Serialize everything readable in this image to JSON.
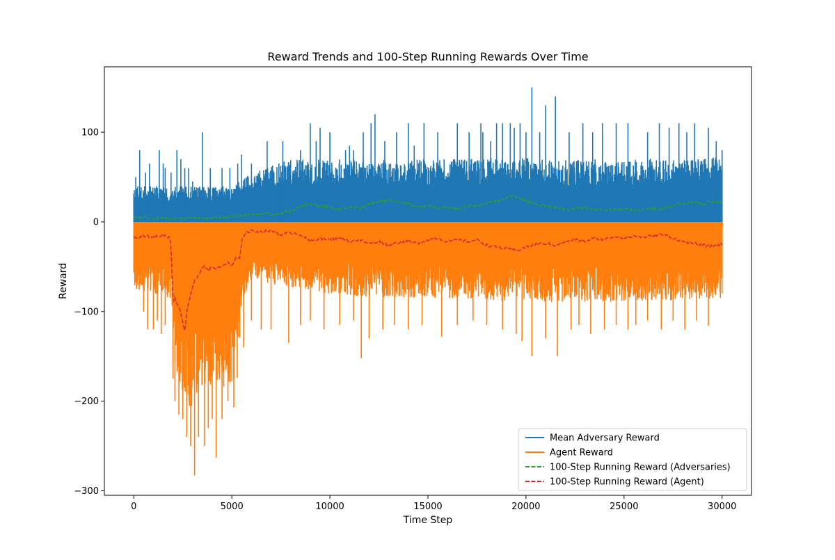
{
  "chart_data": {
    "type": "line",
    "title": "Reward Trends and 100-Step Running Rewards Over Time",
    "xlabel": "Time Step",
    "ylabel": "Reward",
    "xlim": [
      -1500,
      31500
    ],
    "ylim": [
      -305,
      173
    ],
    "xticks": [
      0,
      5000,
      10000,
      15000,
      20000,
      25000,
      30000
    ],
    "xtick_labels": [
      "0",
      "5000",
      "10000",
      "15000",
      "20000",
      "25000",
      "30000"
    ],
    "yticks": [
      100,
      0,
      -100,
      -200,
      -300
    ],
    "ytick_labels": [
      "100",
      "0",
      "−100",
      "−200",
      "−300"
    ],
    "grid": false,
    "legend": {
      "position": "lower-right"
    },
    "series": [
      {
        "name": "Mean Adversary Reward",
        "color": "#1f77b4",
        "style": "solid",
        "kind": "spike-upper",
        "band_top": [
          [
            0,
            40
          ],
          [
            2000,
            40
          ],
          [
            3000,
            40
          ],
          [
            5000,
            40
          ],
          [
            6000,
            55
          ],
          [
            8000,
            70
          ],
          [
            9000,
            70
          ],
          [
            12000,
            70
          ],
          [
            15000,
            70
          ],
          [
            19000,
            72
          ],
          [
            21000,
            70
          ],
          [
            25000,
            70
          ],
          [
            30000,
            72
          ]
        ],
        "spikes": [
          [
            100,
            50
          ],
          [
            300,
            80
          ],
          [
            600,
            55
          ],
          [
            800,
            65
          ],
          [
            1300,
            80
          ],
          [
            1500,
            65
          ],
          [
            1600,
            60
          ],
          [
            1900,
            55
          ],
          [
            2200,
            80
          ],
          [
            2400,
            70
          ],
          [
            2600,
            60
          ],
          [
            2800,
            60
          ],
          [
            3000,
            45
          ],
          [
            3500,
            100
          ],
          [
            3900,
            60
          ],
          [
            4500,
            60
          ],
          [
            4900,
            60
          ],
          [
            5300,
            65
          ],
          [
            5500,
            75
          ],
          [
            6000,
            65
          ],
          [
            6800,
            90
          ],
          [
            7400,
            65
          ],
          [
            7600,
            90
          ],
          [
            8500,
            80
          ],
          [
            9000,
            110
          ],
          [
            9300,
            90
          ],
          [
            9500,
            105
          ],
          [
            10000,
            100
          ],
          [
            10800,
            80
          ],
          [
            11000,
            85
          ],
          [
            11200,
            80
          ],
          [
            11700,
            100
          ],
          [
            12100,
            110
          ],
          [
            12300,
            120
          ],
          [
            12800,
            90
          ],
          [
            13400,
            100
          ],
          [
            14000,
            110
          ],
          [
            14300,
            85
          ],
          [
            14800,
            110
          ],
          [
            15500,
            100
          ],
          [
            16500,
            110
          ],
          [
            17100,
            100
          ],
          [
            17700,
            110
          ],
          [
            17800,
            100
          ],
          [
            18200,
            90
          ],
          [
            18500,
            110
          ],
          [
            18800,
            110
          ],
          [
            19200,
            110
          ],
          [
            19400,
            105
          ],
          [
            19700,
            110
          ],
          [
            20000,
            100
          ],
          [
            20300,
            150
          ],
          [
            20700,
            100
          ],
          [
            21000,
            130
          ],
          [
            21500,
            140
          ],
          [
            22200,
            100
          ],
          [
            22900,
            110
          ],
          [
            23400,
            100
          ],
          [
            23900,
            110
          ],
          [
            24600,
            110
          ],
          [
            25200,
            110
          ],
          [
            26200,
            100
          ],
          [
            26800,
            110
          ],
          [
            27300,
            105
          ],
          [
            27800,
            110
          ],
          [
            28200,
            100
          ],
          [
            28600,
            110
          ],
          [
            29300,
            105
          ],
          [
            29700,
            90
          ],
          [
            30000,
            80
          ]
        ]
      },
      {
        "name": "Agent Reward",
        "color": "#ff7f0e",
        "style": "solid",
        "kind": "spike-lower",
        "band_bottom": [
          [
            0,
            -75
          ],
          [
            1000,
            -80
          ],
          [
            1900,
            -85
          ],
          [
            2000,
            -150
          ],
          [
            2500,
            -200
          ],
          [
            3000,
            -210
          ],
          [
            3500,
            -190
          ],
          [
            4000,
            -180
          ],
          [
            4500,
            -185
          ],
          [
            5000,
            -180
          ],
          [
            5300,
            -175
          ],
          [
            5500,
            -90
          ],
          [
            6000,
            -65
          ],
          [
            8000,
            -75
          ],
          [
            10000,
            -80
          ],
          [
            12000,
            -85
          ],
          [
            15000,
            -85
          ],
          [
            20000,
            -90
          ],
          [
            25000,
            -90
          ],
          [
            30000,
            -85
          ]
        ],
        "spikes": [
          [
            100,
            -68
          ],
          [
            500,
            -100
          ],
          [
            700,
            -120
          ],
          [
            1000,
            -120
          ],
          [
            1200,
            -110
          ],
          [
            1400,
            -125
          ],
          [
            1600,
            -115
          ],
          [
            2000,
            -175
          ],
          [
            2100,
            -200
          ],
          [
            2300,
            -215
          ],
          [
            2500,
            -220
          ],
          [
            2700,
            -240
          ],
          [
            2900,
            -250
          ],
          [
            3100,
            -283
          ],
          [
            3300,
            -240
          ],
          [
            3600,
            -250
          ],
          [
            3800,
            -230
          ],
          [
            4000,
            -220
          ],
          [
            4200,
            -263
          ],
          [
            4500,
            -220
          ],
          [
            4800,
            -200
          ],
          [
            5100,
            -207
          ],
          [
            5600,
            -140
          ],
          [
            6000,
            -110
          ],
          [
            6500,
            -120
          ],
          [
            7000,
            -120
          ],
          [
            7900,
            -135
          ],
          [
            8500,
            -115
          ],
          [
            9000,
            -110
          ],
          [
            9700,
            -120
          ],
          [
            10500,
            -115
          ],
          [
            11200,
            -110
          ],
          [
            11600,
            -152
          ],
          [
            12000,
            -130
          ],
          [
            12700,
            -120
          ],
          [
            13300,
            -115
          ],
          [
            14000,
            -120
          ],
          [
            14700,
            -115
          ],
          [
            15700,
            -128
          ],
          [
            16500,
            -115
          ],
          [
            17300,
            -110
          ],
          [
            18000,
            -115
          ],
          [
            18800,
            -120
          ],
          [
            19500,
            -125
          ],
          [
            19800,
            -133
          ],
          [
            20300,
            -150
          ],
          [
            21000,
            -130
          ],
          [
            21600,
            -150
          ],
          [
            22300,
            -120
          ],
          [
            22700,
            -115
          ],
          [
            23300,
            -125
          ],
          [
            24000,
            -120
          ],
          [
            24600,
            -115
          ],
          [
            25200,
            -120
          ],
          [
            25600,
            -115
          ],
          [
            26200,
            -110
          ],
          [
            26900,
            -120
          ],
          [
            27500,
            -110
          ],
          [
            28100,
            -120
          ],
          [
            28700,
            -110
          ],
          [
            29300,
            -116
          ],
          [
            30000,
            -80
          ]
        ]
      },
      {
        "name": "100-Step Running Reward (Adversaries)",
        "color": "#2ca02c",
        "style": "dashed",
        "kind": "line",
        "points": [
          [
            0,
            4
          ],
          [
            500,
            5
          ],
          [
            1000,
            4
          ],
          [
            1500,
            5
          ],
          [
            2000,
            3
          ],
          [
            2500,
            4
          ],
          [
            3000,
            5
          ],
          [
            3500,
            5
          ],
          [
            4000,
            4
          ],
          [
            4500,
            5
          ],
          [
            5000,
            6
          ],
          [
            5500,
            7
          ],
          [
            6000,
            8
          ],
          [
            6500,
            9
          ],
          [
            7000,
            8
          ],
          [
            7500,
            10
          ],
          [
            8000,
            12
          ],
          [
            8500,
            17
          ],
          [
            9000,
            20
          ],
          [
            9500,
            18
          ],
          [
            10000,
            16
          ],
          [
            10500,
            14
          ],
          [
            11000,
            17
          ],
          [
            11500,
            15
          ],
          [
            12000,
            20
          ],
          [
            12500,
            22
          ],
          [
            13000,
            24
          ],
          [
            13500,
            22
          ],
          [
            14000,
            20
          ],
          [
            14500,
            17
          ],
          [
            15000,
            18
          ],
          [
            15500,
            15
          ],
          [
            16000,
            16
          ],
          [
            16500,
            14
          ],
          [
            17000,
            17
          ],
          [
            17500,
            18
          ],
          [
            18000,
            20
          ],
          [
            18500,
            24
          ],
          [
            19000,
            26
          ],
          [
            19300,
            29
          ],
          [
            19600,
            27
          ],
          [
            20000,
            24
          ],
          [
            20500,
            20
          ],
          [
            21000,
            18
          ],
          [
            21500,
            16
          ],
          [
            22000,
            14
          ],
          [
            22500,
            15
          ],
          [
            23000,
            16
          ],
          [
            23500,
            14
          ],
          [
            24000,
            13
          ],
          [
            24500,
            14
          ],
          [
            25000,
            15
          ],
          [
            25500,
            13
          ],
          [
            26000,
            14
          ],
          [
            26500,
            15
          ],
          [
            27000,
            14
          ],
          [
            27500,
            18
          ],
          [
            28000,
            21
          ],
          [
            28500,
            22
          ],
          [
            29000,
            20
          ],
          [
            29500,
            23
          ],
          [
            30000,
            22
          ]
        ]
      },
      {
        "name": "100-Step Running Reward (Agent)",
        "color": "#d62728",
        "style": "dashed",
        "kind": "line",
        "points": [
          [
            0,
            -16
          ],
          [
            300,
            -17
          ],
          [
            600,
            -15
          ],
          [
            900,
            -18
          ],
          [
            1200,
            -16
          ],
          [
            1500,
            -15
          ],
          [
            1800,
            -17
          ],
          [
            1900,
            -25
          ],
          [
            2000,
            -90
          ],
          [
            2100,
            -85
          ],
          [
            2300,
            -95
          ],
          [
            2500,
            -110
          ],
          [
            2600,
            -125
          ],
          [
            2700,
            -100
          ],
          [
            2900,
            -80
          ],
          [
            3100,
            -65
          ],
          [
            3300,
            -60
          ],
          [
            3600,
            -48
          ],
          [
            3800,
            -55
          ],
          [
            4000,
            -50
          ],
          [
            4300,
            -52
          ],
          [
            4600,
            -48
          ],
          [
            4800,
            -45
          ],
          [
            5000,
            -50
          ],
          [
            5200,
            -40
          ],
          [
            5400,
            -42
          ],
          [
            5500,
            -20
          ],
          [
            5700,
            -12
          ],
          [
            6000,
            -10
          ],
          [
            6500,
            -11
          ],
          [
            7000,
            -10
          ],
          [
            7500,
            -14
          ],
          [
            8000,
            -12
          ],
          [
            8500,
            -14
          ],
          [
            9000,
            -22
          ],
          [
            9500,
            -18
          ],
          [
            10000,
            -20
          ],
          [
            10500,
            -17
          ],
          [
            11000,
            -22
          ],
          [
            11500,
            -20
          ],
          [
            12000,
            -24
          ],
          [
            12500,
            -22
          ],
          [
            13000,
            -26
          ],
          [
            13500,
            -23
          ],
          [
            14000,
            -22
          ],
          [
            14500,
            -24
          ],
          [
            15000,
            -20
          ],
          [
            15500,
            -18
          ],
          [
            16000,
            -22
          ],
          [
            16500,
            -20
          ],
          [
            17000,
            -22
          ],
          [
            17500,
            -20
          ],
          [
            18000,
            -26
          ],
          [
            18500,
            -28
          ],
          [
            19000,
            -30
          ],
          [
            19500,
            -32
          ],
          [
            20000,
            -28
          ],
          [
            20500,
            -25
          ],
          [
            21000,
            -24
          ],
          [
            21500,
            -26
          ],
          [
            22000,
            -22
          ],
          [
            22500,
            -20
          ],
          [
            23000,
            -22
          ],
          [
            23500,
            -18
          ],
          [
            24000,
            -20
          ],
          [
            24500,
            -16
          ],
          [
            25000,
            -18
          ],
          [
            25500,
            -16
          ],
          [
            26000,
            -17
          ],
          [
            26500,
            -15
          ],
          [
            27000,
            -14
          ],
          [
            27500,
            -18
          ],
          [
            28000,
            -22
          ],
          [
            28500,
            -24
          ],
          [
            29000,
            -26
          ],
          [
            29500,
            -27
          ],
          [
            30000,
            -25
          ]
        ]
      }
    ]
  }
}
